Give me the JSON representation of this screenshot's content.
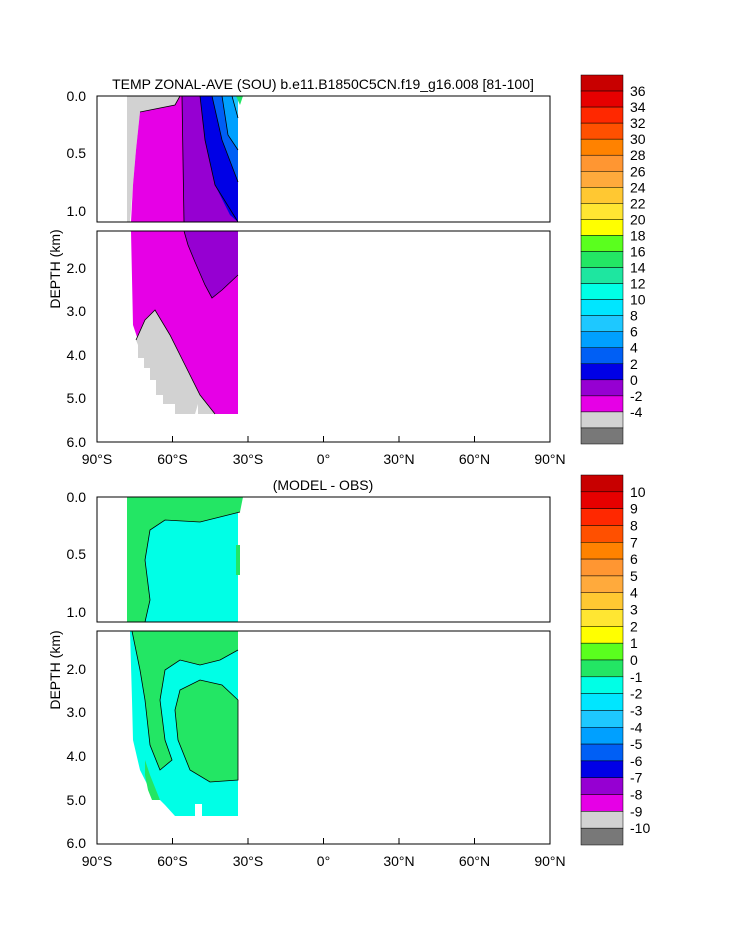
{
  "chart_data": [
    {
      "type": "heatmap",
      "title": "TEMP ZONAL-AVE (SOU) b.e11.B1850C5CN.f19_g16.008 [81-100]",
      "ylabel": "DEPTH (km)",
      "xlim": [
        -90,
        90
      ],
      "x_ticks": [
        {
          "value": -90,
          "label": "90°S"
        },
        {
          "value": -60,
          "label": "60°S"
        },
        {
          "value": -30,
          "label": "30°S"
        },
        {
          "value": 0,
          "label": "0°"
        },
        {
          "value": 30,
          "label": "30°N"
        },
        {
          "value": 60,
          "label": "60°N"
        },
        {
          "value": 90,
          "label": "90°N"
        }
      ],
      "y_ticks_upper": [
        "0.0",
        "0.5",
        "1.0"
      ],
      "y_ticks_lower": [
        "2.0",
        "3.0",
        "4.0",
        "5.0",
        "6.0"
      ],
      "colorbar": {
        "labels": [
          "36",
          "34",
          "32",
          "30",
          "28",
          "26",
          "24",
          "22",
          "20",
          "18",
          "16",
          "14",
          "12",
          "10",
          "8",
          "6",
          "4",
          "2",
          "0",
          "-2",
          "-4"
        ],
        "colors": [
          "#c80000",
          "#e60000",
          "#ff2800",
          "#ff5000",
          "#ff8200",
          "#ff9632",
          "#ffaa3c",
          "#ffc832",
          "#ffe632",
          "#ffff00",
          "#5aff1e",
          "#23e664",
          "#1ee6a0",
          "#00ffe6",
          "#00e6ff",
          "#1ec8ff",
          "#00a0ff",
          "#005ff5",
          "#0000e6",
          "#9600d2",
          "#e600e6",
          "#d2d2d2",
          "#787878"
        ]
      },
      "regions_note": "Data present only from ~78°S to ~34°S; remaining area blank"
    },
    {
      "type": "heatmap",
      "title": "(MODEL - OBS)",
      "ylabel": "DEPTH (km)",
      "xlim": [
        -90,
        90
      ],
      "x_ticks": [
        {
          "value": -90,
          "label": "90°S"
        },
        {
          "value": -60,
          "label": "60°S"
        },
        {
          "value": -30,
          "label": "30°S"
        },
        {
          "value": 0,
          "label": "0°"
        },
        {
          "value": 30,
          "label": "30°N"
        },
        {
          "value": 60,
          "label": "60°N"
        },
        {
          "value": 90,
          "label": "90°N"
        }
      ],
      "y_ticks_upper": [
        "0.0",
        "0.5",
        "1.0"
      ],
      "y_ticks_lower": [
        "2.0",
        "3.0",
        "4.0",
        "5.0",
        "6.0"
      ],
      "colorbar": {
        "labels": [
          "10",
          "9",
          "8",
          "7",
          "6",
          "5",
          "4",
          "3",
          "2",
          "1",
          "0",
          "-1",
          "-2",
          "-3",
          "-4",
          "-5",
          "-6",
          "-7",
          "-8",
          "-9",
          "-10"
        ],
        "colors": [
          "#c80000",
          "#e60000",
          "#ff2800",
          "#ff5000",
          "#ff8200",
          "#ff9632",
          "#ffaa3c",
          "#ffc832",
          "#ffe632",
          "#ffff00",
          "#5aff1e",
          "#23e664",
          "#00ffe6",
          "#00e6ff",
          "#1ec8ff",
          "#00a0ff",
          "#005ff5",
          "#0000e6",
          "#9600d2",
          "#e600e6",
          "#d2d2d2",
          "#787878"
        ]
      }
    }
  ]
}
